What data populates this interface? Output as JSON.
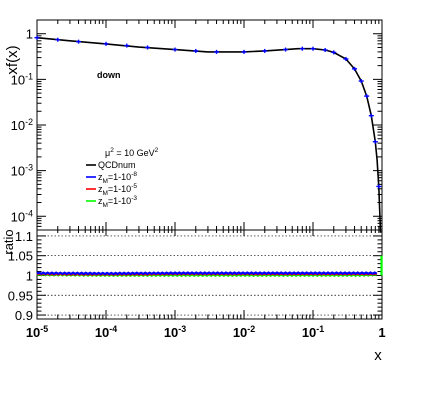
{
  "chart_data": {
    "type": "line",
    "xlabel": "x",
    "x_scale": "log",
    "xlim": [
      1e-05,
      1
    ],
    "x_ticks": [
      {
        "v": 1e-05,
        "base": "10",
        "exp": "-5"
      },
      {
        "v": 0.0001,
        "base": "10",
        "exp": "-4"
      },
      {
        "v": 0.001,
        "base": "10",
        "exp": "-3"
      },
      {
        "v": 0.01,
        "base": "10",
        "exp": "-2"
      },
      {
        "v": 0.1,
        "base": "10",
        "exp": "-1"
      },
      {
        "v": 1,
        "base": "1",
        "exp": ""
      }
    ],
    "top": {
      "ylabel": "xf(x)",
      "y_scale": "log",
      "ylim": [
        5e-05,
        2
      ],
      "y_ticks": [
        {
          "v": 1,
          "base": "1",
          "exp": ""
        },
        {
          "v": 0.1,
          "base": "10",
          "exp": "-1"
        },
        {
          "v": 0.01,
          "base": "10",
          "exp": "-2"
        },
        {
          "v": 0.001,
          "base": "10",
          "exp": "-3"
        },
        {
          "v": 0.0001,
          "base": "10",
          "exp": "-4"
        }
      ],
      "annotation": "down",
      "scale_label": {
        "prefix": "μ",
        "sup1": "2",
        "mid": " = 10 GeV",
        "sup2": "2"
      },
      "legend": [
        {
          "color": "#000000",
          "main": "QCDnum",
          "sub": "",
          "post": "",
          "sup": ""
        },
        {
          "color": "#0000ff",
          "main": "z",
          "sub": "M",
          "post": "=1-10",
          "sup": "-8"
        },
        {
          "color": "#ff0000",
          "main": "z",
          "sub": "M",
          "post": "=1-10",
          "sup": "-5"
        },
        {
          "color": "#00ff00",
          "main": "z",
          "sub": "M",
          "post": "=1-10",
          "sup": "-3"
        }
      ],
      "series": [
        {
          "name": "QCDnum",
          "color": "#000000",
          "x": [
            1e-05,
            3e-05,
            0.0001,
            0.0003,
            0.001,
            0.003,
            0.01,
            0.02,
            0.04,
            0.06,
            0.1,
            0.15,
            0.2,
            0.3,
            0.4,
            0.5,
            0.6,
            0.7,
            0.8,
            0.85,
            0.9,
            0.95,
            0.98
          ],
          "y": [
            0.82,
            0.7,
            0.6,
            0.51,
            0.45,
            0.4,
            0.4,
            0.42,
            0.45,
            0.47,
            0.47,
            0.44,
            0.39,
            0.28,
            0.17,
            0.092,
            0.043,
            0.016,
            0.0043,
            0.0017,
            0.00045,
            4e-05,
            1e-06
          ]
        },
        {
          "name": "z_M=1-10^-8",
          "color": "#0000ff",
          "x": [
            1e-05,
            2e-05,
            4e-05,
            0.0001,
            0.0002,
            0.0004,
            0.001,
            0.002,
            0.004,
            0.01,
            0.02,
            0.04,
            0.07,
            0.1,
            0.15,
            0.2,
            0.3,
            0.4,
            0.5,
            0.6,
            0.7,
            0.8,
            0.9
          ],
          "y": [
            0.82,
            0.74,
            0.67,
            0.6,
            0.55,
            0.5,
            0.45,
            0.42,
            0.4,
            0.4,
            0.42,
            0.45,
            0.47,
            0.47,
            0.44,
            0.39,
            0.28,
            0.17,
            0.092,
            0.043,
            0.016,
            0.0043,
            0.00045
          ]
        }
      ]
    },
    "bottom": {
      "ylabel": "ratio",
      "ylim": [
        0.89,
        1.115
      ],
      "y_ticks": [
        {
          "v": 0.9,
          "label": "0.9"
        },
        {
          "v": 0.95,
          "label": "0.95"
        },
        {
          "v": 1,
          "label": "1"
        },
        {
          "v": 1.05,
          "label": "1.05"
        },
        {
          "v": 1.1,
          "label": "1.1"
        }
      ],
      "dotted_gridlines": [
        0.9,
        0.95,
        1.0,
        1.05,
        1.1
      ],
      "series": [
        {
          "name": "z_M=1-10^-3",
          "color": "#00ff00",
          "x": [
            1e-05,
            0.0001,
            0.001,
            0.01,
            0.1,
            0.5,
            0.9,
            0.97
          ],
          "y": [
            1.002,
            1.001,
            1.001,
            1.001,
            1.001,
            1.001,
            1.002,
            1.006
          ]
        },
        {
          "name": "z_M=1-10^-5",
          "color": "#ff0000",
          "x": [
            1e-05,
            0.0001,
            0.001,
            0.01,
            0.1,
            0.5,
            0.9
          ],
          "y": [
            1.004,
            1.003,
            1.004,
            1.004,
            1.004,
            1.004,
            1.004
          ]
        },
        {
          "name": "z_M=1-10^-8",
          "color": "#0000ff",
          "x": [
            1e-05,
            0.0001,
            0.001,
            0.01,
            0.1,
            0.5,
            0.9
          ],
          "y": [
            1.006,
            1.005,
            1.006,
            1.006,
            1.006,
            1.006,
            1.006
          ]
        }
      ],
      "end_spike": {
        "color": "#00ff00",
        "x": 0.985,
        "y": 1.05
      }
    }
  }
}
